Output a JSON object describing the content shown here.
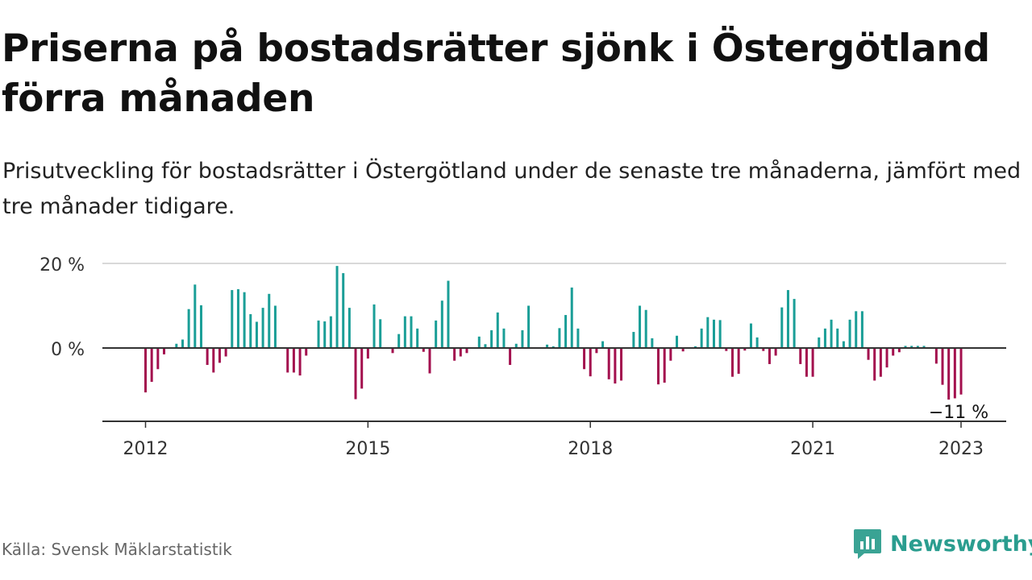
{
  "header": {
    "title": "Priserna på bostadsrätter sjönk i Östergötland förra månaden",
    "subtitle": "Prisutveckling för bostadsrätter i Östergötland under de senaste tre månaderna, jämfört med tre månader tidigare."
  },
  "footer": {
    "source": "Källa: Svensk Mäklarstatistik",
    "brand": "Newsworthy"
  },
  "colors": {
    "positive": "#1a9e97",
    "negative": "#a3104e",
    "brand": "#2a9d8f",
    "grid": "#d9d9d9",
    "axis": "#333333"
  },
  "chart_data": {
    "type": "bar",
    "x_start": "2012-01",
    "x_end": "2023-01",
    "x_ticks": [
      {
        "label": "2012",
        "x": "2012-01"
      },
      {
        "label": "2015",
        "x": "2015-01"
      },
      {
        "label": "2018",
        "x": "2018-01"
      },
      {
        "label": "2021",
        "x": "2021-01"
      },
      {
        "label": "2023",
        "x": "2023-01"
      }
    ],
    "y_ticks": [
      {
        "label": "0 %",
        "value": 0
      },
      {
        "label": "20 %",
        "value": 20
      }
    ],
    "ylim": [
      -17.5,
      20
    ],
    "grid": true,
    "annotation": {
      "text": "−11 %",
      "x": "2023-01",
      "value": -11
    },
    "points": [
      [
        "2012-01",
        -10.5
      ],
      [
        "2012-02",
        -8
      ],
      [
        "2012-03",
        -5
      ],
      [
        "2012-04",
        -1.5
      ],
      [
        "2012-05",
        0
      ],
      [
        "2012-06",
        1
      ],
      [
        "2012-07",
        2
      ],
      [
        "2012-08",
        9.2
      ],
      [
        "2012-09",
        15
      ],
      [
        "2012-10",
        10.1
      ],
      [
        "2012-11",
        -4
      ],
      [
        "2012-12",
        -5.8
      ],
      [
        "2013-01",
        -3.5
      ],
      [
        "2013-02",
        -2
      ],
      [
        "2013-03",
        13.7
      ],
      [
        "2013-04",
        13.9
      ],
      [
        "2013-05",
        13.2
      ],
      [
        "2013-06",
        8
      ],
      [
        "2013-07",
        6.2
      ],
      [
        "2013-08",
        9.5
      ],
      [
        "2013-09",
        12.8
      ],
      [
        "2013-10",
        10
      ],
      [
        "2013-11",
        0
      ],
      [
        "2013-12",
        -5.8
      ],
      [
        "2014-01",
        -5.8
      ],
      [
        "2014-02",
        -6.5
      ],
      [
        "2014-03",
        -1.8
      ],
      [
        "2014-04",
        0
      ],
      [
        "2014-05",
        6.5
      ],
      [
        "2014-06",
        6.3
      ],
      [
        "2014-07",
        7.5
      ],
      [
        "2014-08",
        19.4
      ],
      [
        "2014-09",
        17.7
      ],
      [
        "2014-10",
        9.5
      ],
      [
        "2014-11",
        -12.1
      ],
      [
        "2014-12",
        -9.6
      ],
      [
        "2015-01",
        -2.5
      ],
      [
        "2015-02",
        10.3
      ],
      [
        "2015-03",
        6.8
      ],
      [
        "2015-04",
        0
      ],
      [
        "2015-05",
        -1.2
      ],
      [
        "2015-06",
        3.3
      ],
      [
        "2015-07",
        7.5
      ],
      [
        "2015-08",
        7.5
      ],
      [
        "2015-09",
        4.6
      ],
      [
        "2015-10",
        -0.9
      ],
      [
        "2015-11",
        -6
      ],
      [
        "2015-12",
        6.5
      ],
      [
        "2016-01",
        11.2
      ],
      [
        "2016-02",
        15.9
      ],
      [
        "2016-03",
        -3
      ],
      [
        "2016-04",
        -2
      ],
      [
        "2016-05",
        -1.2
      ],
      [
        "2016-06",
        0
      ],
      [
        "2016-07",
        2.7
      ],
      [
        "2016-08",
        0.9
      ],
      [
        "2016-09",
        4.2
      ],
      [
        "2016-10",
        8.4
      ],
      [
        "2016-11",
        4.6
      ],
      [
        "2016-12",
        -4
      ],
      [
        "2017-01",
        1
      ],
      [
        "2017-02",
        4.2
      ],
      [
        "2017-03",
        10
      ],
      [
        "2017-04",
        0
      ],
      [
        "2017-05",
        0
      ],
      [
        "2017-06",
        0.8
      ],
      [
        "2017-07",
        0.4
      ],
      [
        "2017-08",
        4.7
      ],
      [
        "2017-09",
        7.8
      ],
      [
        "2017-10",
        14.3
      ],
      [
        "2017-11",
        4.6
      ],
      [
        "2017-12",
        -5
      ],
      [
        "2018-01",
        -6.7
      ],
      [
        "2018-02",
        -1.2
      ],
      [
        "2018-03",
        1.6
      ],
      [
        "2018-04",
        -7.4
      ],
      [
        "2018-05",
        -8.4
      ],
      [
        "2018-06",
        -7.7
      ],
      [
        "2018-07",
        0
      ],
      [
        "2018-08",
        3.8
      ],
      [
        "2018-09",
        10
      ],
      [
        "2018-10",
        9
      ],
      [
        "2018-11",
        2.3
      ],
      [
        "2018-12",
        -8.6
      ],
      [
        "2019-01",
        -8.2
      ],
      [
        "2019-02",
        -3
      ],
      [
        "2019-03",
        2.9
      ],
      [
        "2019-04",
        -0.8
      ],
      [
        "2019-05",
        0
      ],
      [
        "2019-06",
        0.4
      ],
      [
        "2019-07",
        4.6
      ],
      [
        "2019-08",
        7.3
      ],
      [
        "2019-09",
        6.7
      ],
      [
        "2019-10",
        6.6
      ],
      [
        "2019-11",
        -0.7
      ],
      [
        "2019-12",
        -6.8
      ],
      [
        "2020-01",
        -6.1
      ],
      [
        "2020-02",
        -0.6
      ],
      [
        "2020-03",
        5.8
      ],
      [
        "2020-04",
        2.5
      ],
      [
        "2020-05",
        -0.7
      ],
      [
        "2020-06",
        -3.8
      ],
      [
        "2020-07",
        -1.8
      ],
      [
        "2020-08",
        9.6
      ],
      [
        "2020-09",
        13.7
      ],
      [
        "2020-10",
        11.6
      ],
      [
        "2020-11",
        -3.8
      ],
      [
        "2020-12",
        -6.8
      ],
      [
        "2021-01",
        -6.8
      ],
      [
        "2021-02",
        2.5
      ],
      [
        "2021-03",
        4.6
      ],
      [
        "2021-04",
        6.7
      ],
      [
        "2021-05",
        4.6
      ],
      [
        "2021-06",
        1.6
      ],
      [
        "2021-07",
        6.7
      ],
      [
        "2021-08",
        8.7
      ],
      [
        "2021-09",
        8.7
      ],
      [
        "2021-10",
        -2.8
      ],
      [
        "2021-11",
        -7.7
      ],
      [
        "2021-12",
        -6.8
      ],
      [
        "2022-01",
        -4.6
      ],
      [
        "2022-02",
        -1.8
      ],
      [
        "2022-03",
        -1
      ],
      [
        "2022-04",
        0.5
      ],
      [
        "2022-05",
        0.5
      ],
      [
        "2022-06",
        0.5
      ],
      [
        "2022-07",
        0.5
      ],
      [
        "2022-08",
        0
      ],
      [
        "2022-09",
        -3.7
      ],
      [
        "2022-10",
        -8.7
      ],
      [
        "2022-11",
        -12.2
      ],
      [
        "2022-12",
        -11.9
      ],
      [
        "2023-01",
        -11
      ]
    ]
  }
}
